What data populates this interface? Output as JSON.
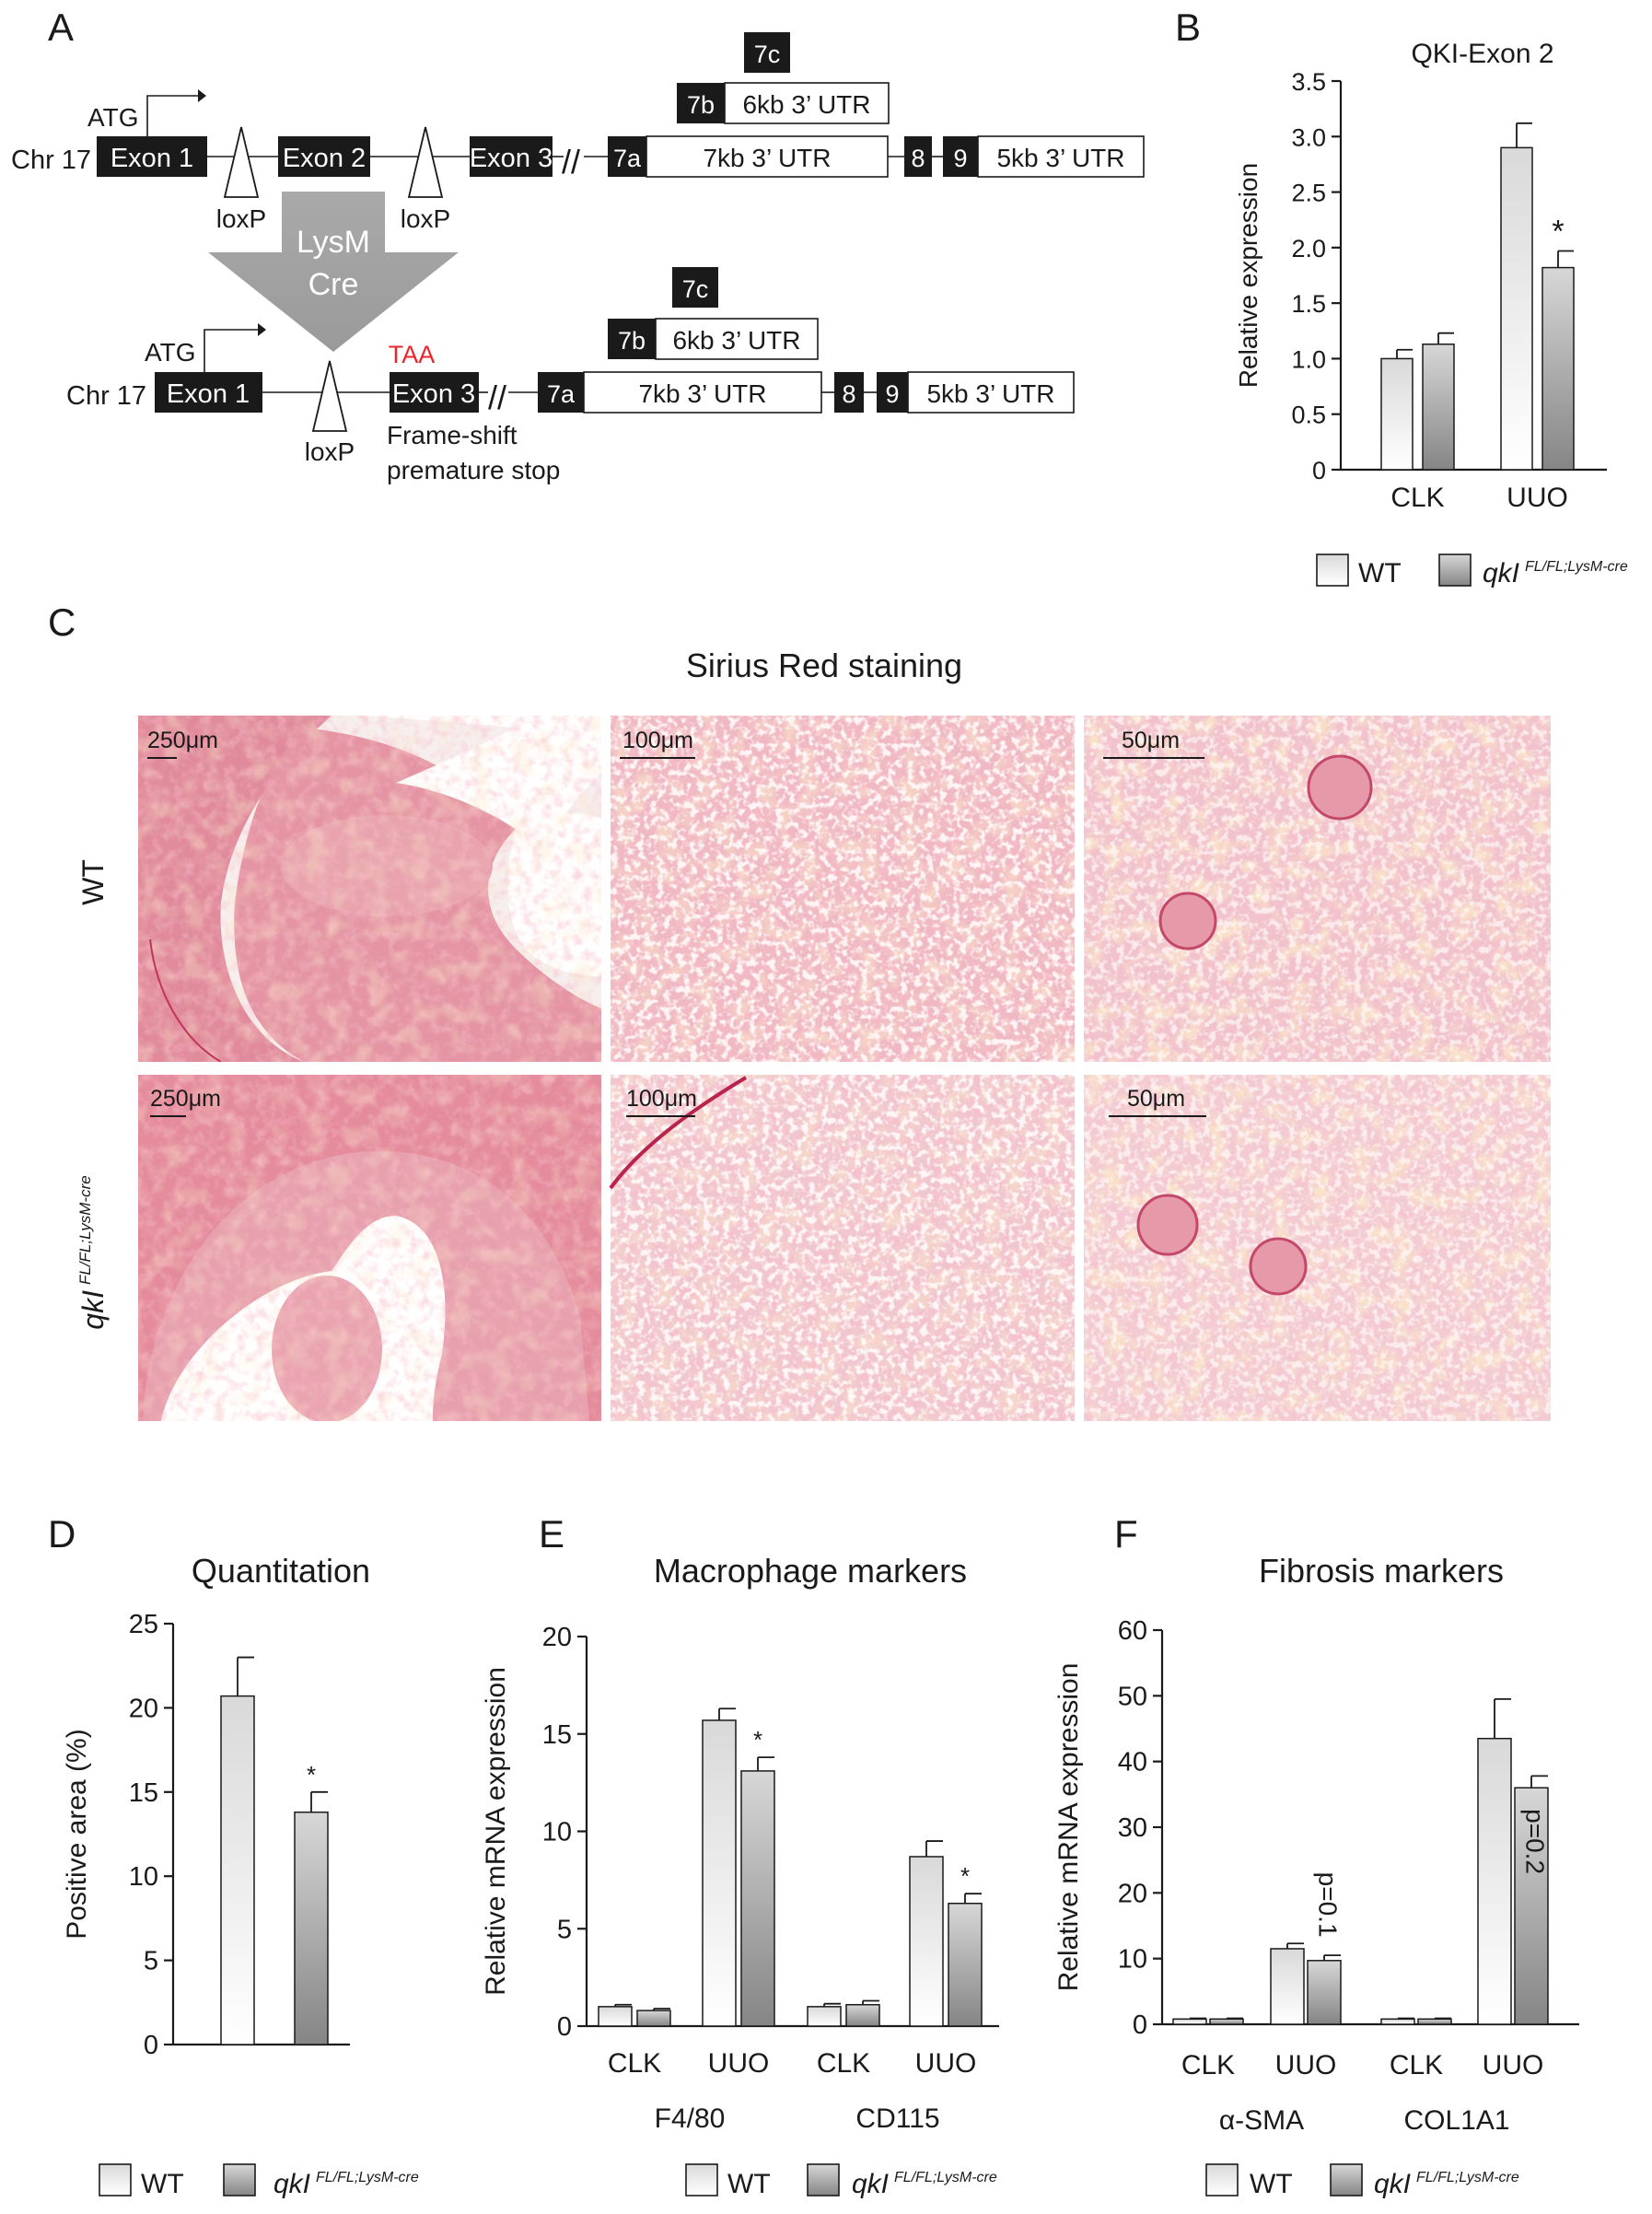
{
  "panels": {
    "A": {
      "letter": "A"
    },
    "B": {
      "letter": "B"
    },
    "C": {
      "letter": "C"
    },
    "D": {
      "letter": "D"
    },
    "E": {
      "letter": "E"
    },
    "F": {
      "letter": "F"
    }
  },
  "gene_diagram": {
    "chr_label": "Chr 17",
    "atg": "ATG",
    "top_row": {
      "exon1": "Exon 1",
      "exon2": "Exon 2",
      "exon3": "Exon 3",
      "ex7a": "7a",
      "utr7a": "7kb 3’ UTR",
      "ex7b": "7b",
      "utr7b": "6kb 3’ UTR",
      "ex7c": "7c",
      "ex8": "8",
      "ex9": "9",
      "utr9": "5kb 3’ UTR",
      "loxp1": "loxP",
      "loxp2": "loxP"
    },
    "cre_label_1": "LysM",
    "cre_label_2": "Cre",
    "bottom_row": {
      "exon1": "Exon 1",
      "exon3": "Exon 3",
      "taa": "TAA",
      "ex7a": "7a",
      "utr7a": "7kb 3’ UTR",
      "ex7b": "7b",
      "utr7b": "6kb 3’ UTR",
      "ex7c": "7c",
      "ex8": "8",
      "ex9": "9",
      "utr9": "5kb 3’ UTR",
      "loxp": "loxP",
      "note_1": "Frame-shift",
      "note_2": "premature stop"
    }
  },
  "legend": {
    "wt": "WT",
    "mut_main": "qkI",
    "mut_sup": "FL/FL;LysM-cre"
  },
  "histology": {
    "title": "Sirius Red staining",
    "row_labels": [
      "WT",
      "qkI"
    ],
    "row2_sup": "FL/FL;LysM-cre",
    "scalebars": [
      "250μm",
      "100μm",
      "50μm"
    ]
  },
  "significance": "*",
  "chart_data": [
    {
      "id": "B",
      "type": "bar",
      "title": "QKI-Exon 2",
      "ylabel": "Relative expression",
      "ylim": [
        0,
        3.5
      ],
      "yticks": [
        "0",
        "0.5",
        "1.0",
        "1.5",
        "2.0",
        "2.5",
        "3.0",
        "3.5"
      ],
      "categories": [
        "CLK",
        "UUO"
      ],
      "series": [
        {
          "name": "WT",
          "values": [
            1.0,
            2.9
          ],
          "errors": [
            0.08,
            0.22
          ]
        },
        {
          "name": "qkI FL/FL;LysM-cre",
          "values": [
            1.13,
            1.82
          ],
          "errors": [
            0.1,
            0.15
          ]
        }
      ],
      "annotations": [
        {
          "series": 1,
          "category": 1,
          "text": "*"
        }
      ]
    },
    {
      "id": "D",
      "type": "bar",
      "title": "Quantitation",
      "ylabel": "Positive area (%)",
      "ylim": [
        0,
        25
      ],
      "yticks": [
        "0",
        "5",
        "10",
        "15",
        "20",
        "25"
      ],
      "categories": [
        ""
      ],
      "series": [
        {
          "name": "WT",
          "values": [
            20.7
          ],
          "errors": [
            2.3
          ]
        },
        {
          "name": "qkI FL/FL;LysM-cre",
          "values": [
            13.8
          ],
          "errors": [
            1.2
          ]
        }
      ],
      "annotations": [
        {
          "series": 1,
          "category": 0,
          "text": "*"
        }
      ]
    },
    {
      "id": "E",
      "type": "bar",
      "title": "Macrophage markers",
      "ylabel": "Relative mRNA expression",
      "ylim": [
        0,
        20
      ],
      "yticks": [
        "0",
        "5",
        "10",
        "15",
        "20"
      ],
      "categories": [
        "CLK",
        "UUO",
        "CLK",
        "UUO"
      ],
      "groups": [
        "F4/80",
        "CD115"
      ],
      "series": [
        {
          "name": "WT",
          "values": [
            1.0,
            15.7,
            1.0,
            8.7
          ],
          "errors": [
            0.1,
            0.6,
            0.15,
            0.8
          ]
        },
        {
          "name": "qkI FL/FL;LysM-cre",
          "values": [
            0.8,
            13.1,
            1.1,
            6.3
          ],
          "errors": [
            0.1,
            0.7,
            0.2,
            0.5
          ]
        }
      ],
      "annotations": [
        {
          "series": 1,
          "category": 1,
          "text": "*"
        },
        {
          "series": 1,
          "category": 3,
          "text": "*"
        }
      ]
    },
    {
      "id": "F",
      "type": "bar",
      "title": "Fibrosis markers",
      "ylabel": "Relative mRNA expression",
      "ylim": [
        0,
        60
      ],
      "yticks": [
        "0",
        "10",
        "20",
        "30",
        "40",
        "50",
        "60"
      ],
      "categories": [
        "CLK",
        "UUO",
        "CLK",
        "UUO"
      ],
      "groups": [
        "α-SMA",
        "COL1A1"
      ],
      "series": [
        {
          "name": "WT",
          "values": [
            0.8,
            11.5,
            0.8,
            43.5
          ],
          "errors": [
            0.1,
            0.8,
            0.1,
            6.0
          ]
        },
        {
          "name": "qkI FL/FL;LysM-cre",
          "values": [
            0.8,
            9.7,
            0.8,
            36.0
          ],
          "errors": [
            0.1,
            0.8,
            0.1,
            1.8
          ]
        }
      ],
      "annotations": [
        {
          "series": 1,
          "category": 1,
          "text": "p=0.1",
          "rotated": true,
          "outside": true
        },
        {
          "series": 1,
          "category": 3,
          "text": "p=0.2",
          "rotated": true,
          "outside": false
        }
      ]
    }
  ]
}
